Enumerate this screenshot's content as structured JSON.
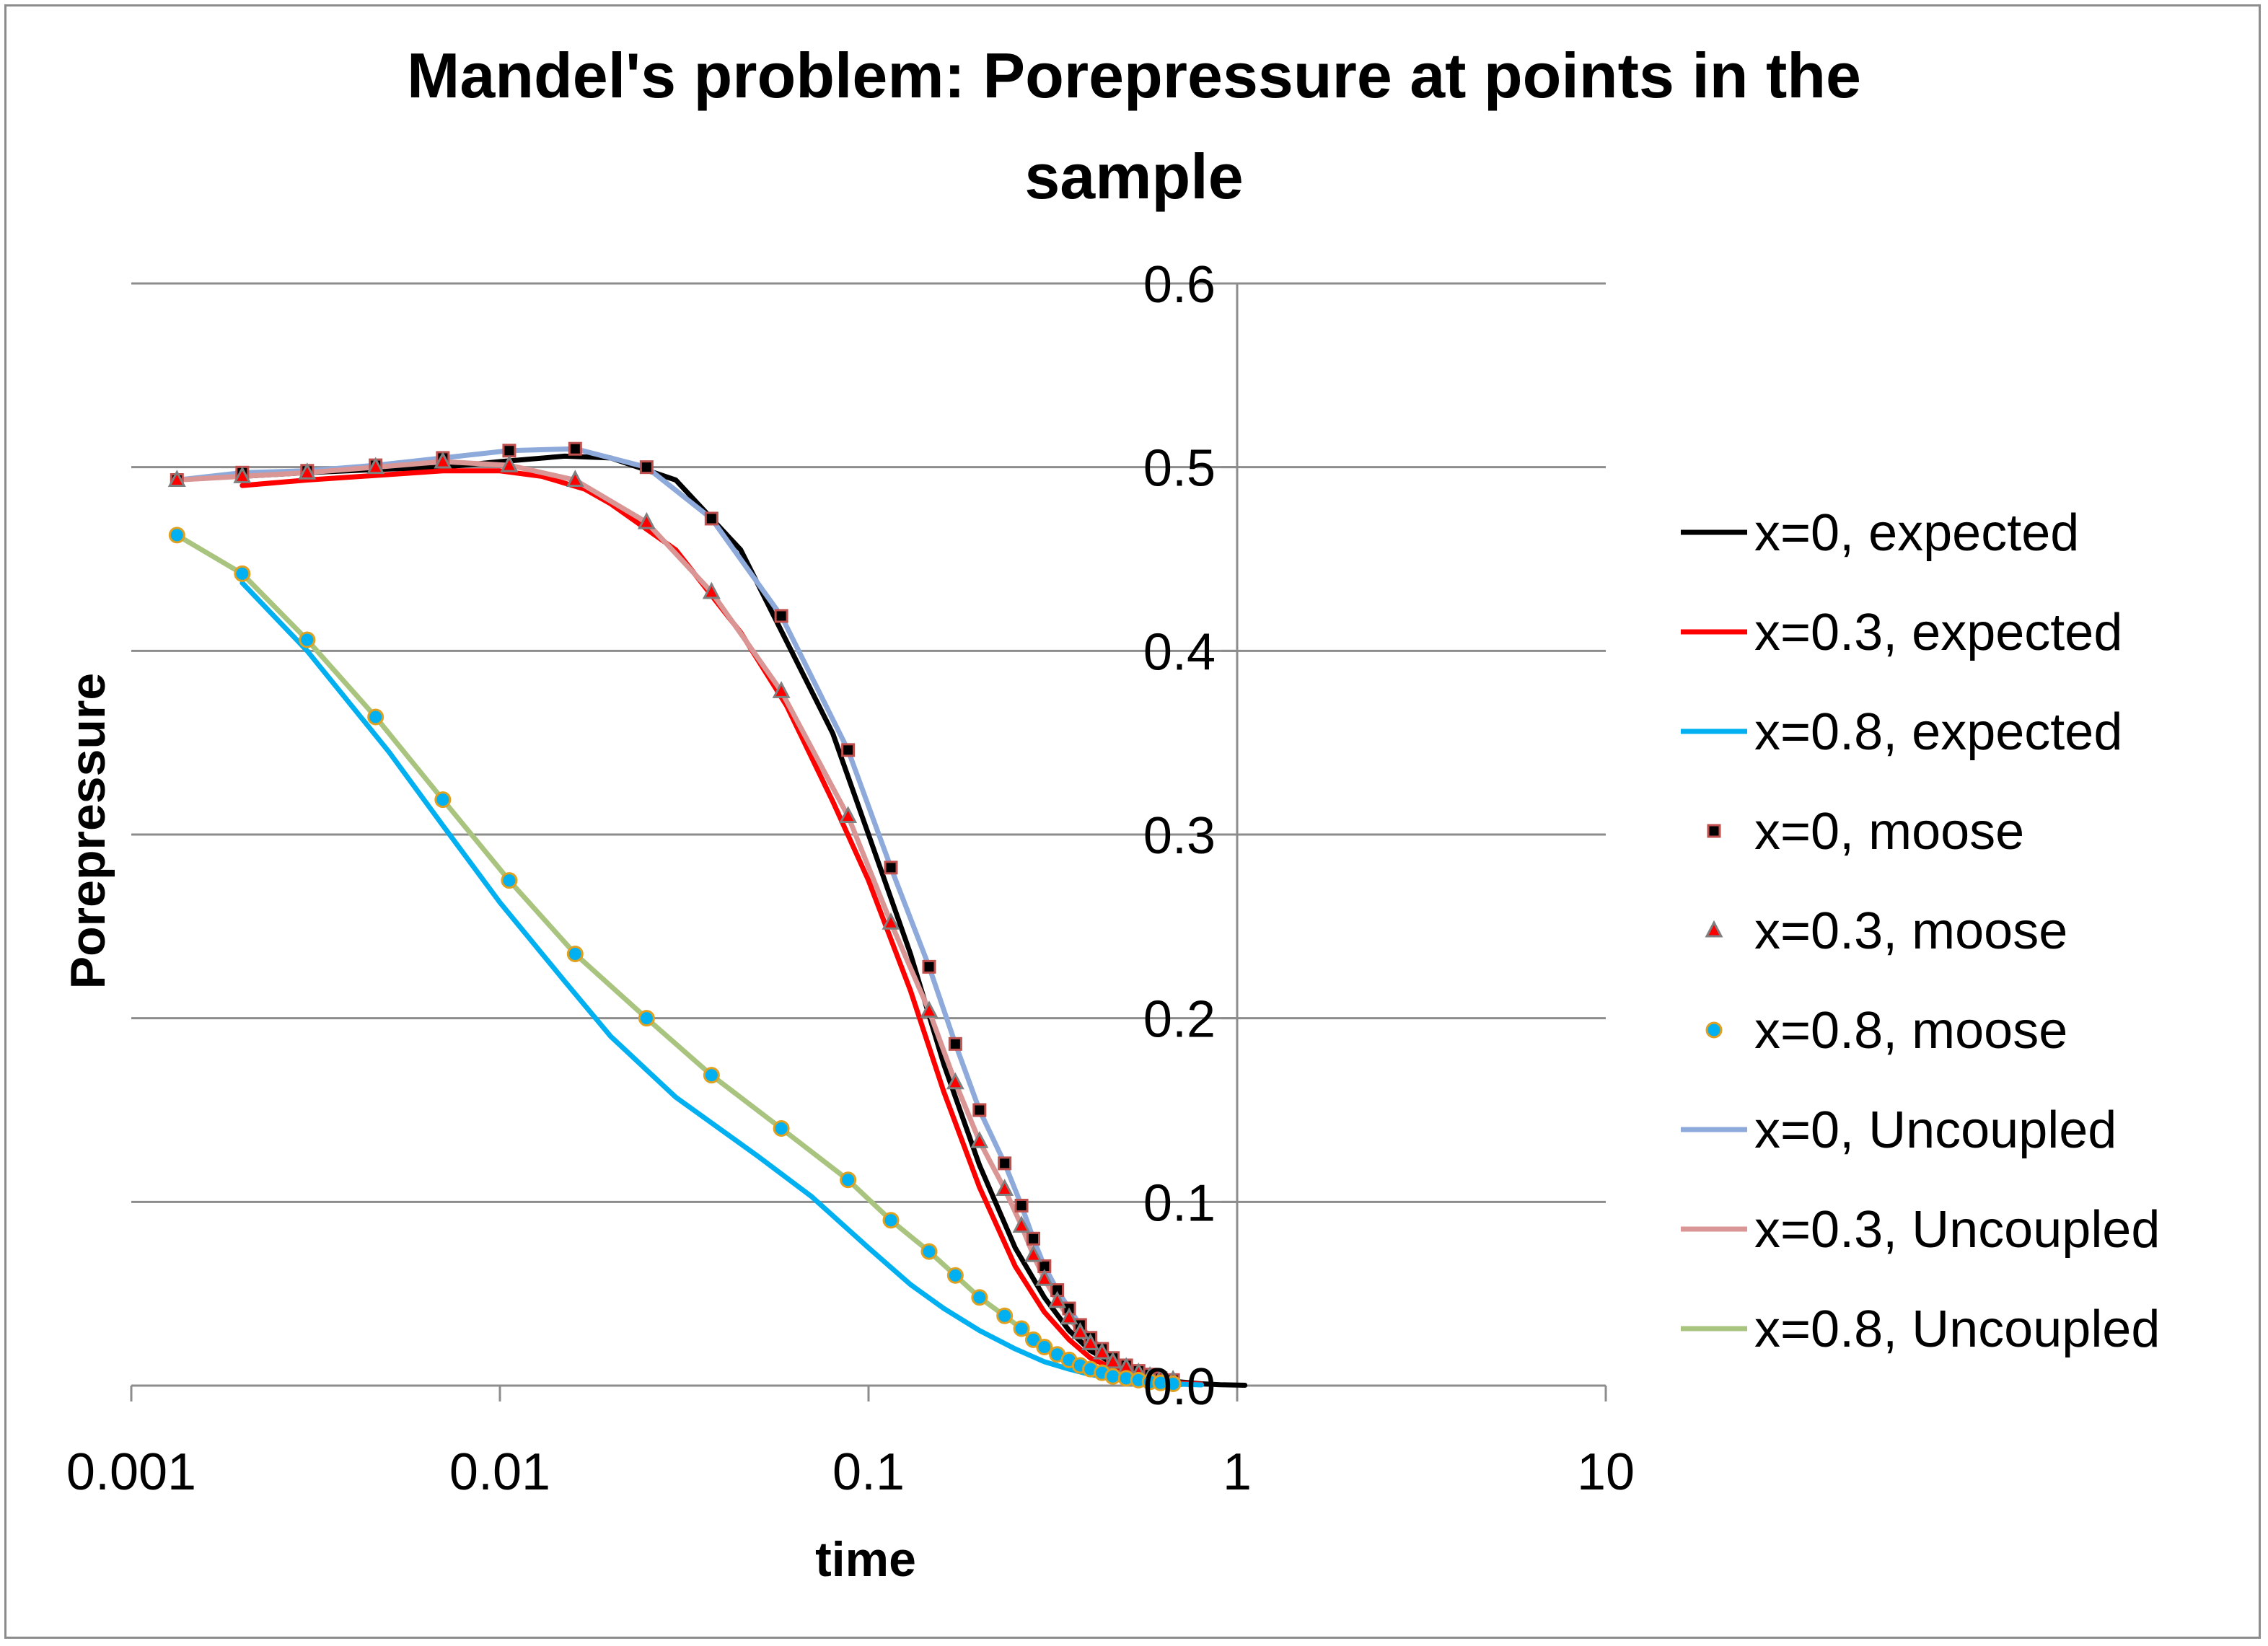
{
  "chart_data": {
    "type": "line",
    "title_line1": "Mandel's problem: Porepressure at points in the",
    "title_line2": "sample",
    "xlabel": "time",
    "ylabel": "Porepressure",
    "x_scale": "log",
    "xlim": [
      0.001,
      10
    ],
    "ylim": [
      0,
      0.6
    ],
    "x_ticks": [
      0.001,
      0.01,
      0.1,
      1,
      10
    ],
    "x_tick_labels": [
      "0.001",
      "0.01",
      "0.1",
      "1",
      "10"
    ],
    "y_ticks": [
      0,
      0.1,
      0.2,
      0.3,
      0.4,
      0.5,
      0.6
    ],
    "y_tick_labels": [
      "0.0",
      "0.1",
      "0.2",
      "0.3",
      "0.4",
      "0.5",
      "0.6"
    ],
    "y_axis_position": "x=1",
    "grid": {
      "horizontal": true,
      "vertical": false
    },
    "legend_position": "right",
    "series": [
      {
        "name": "x=0, expected",
        "kind": "line",
        "color": "#000000",
        "x": [
          0.002,
          0.003,
          0.005,
          0.007,
          0.01,
          0.015,
          0.02,
          0.03,
          0.045,
          0.06,
          0.08,
          0.1,
          0.13,
          0.16,
          0.2,
          0.25,
          0.3,
          0.35,
          0.4,
          0.5,
          0.6,
          0.7,
          0.8,
          0.9,
          1.0,
          1.05
        ],
        "y": [
          0.495,
          0.497,
          0.499,
          0.5,
          0.503,
          0.506,
          0.505,
          0.493,
          0.455,
          0.405,
          0.355,
          0.3,
          0.235,
          0.175,
          0.12,
          0.075,
          0.048,
          0.03,
          0.019,
          0.008,
          0.004,
          0.002,
          0.001,
          0.0005,
          0.0003,
          0.0002
        ]
      },
      {
        "name": "x=0.3, expected",
        "kind": "line",
        "color": "#ff0000",
        "x": [
          0.002,
          0.003,
          0.005,
          0.007,
          0.01,
          0.013,
          0.017,
          0.02,
          0.03,
          0.045,
          0.06,
          0.08,
          0.1,
          0.13,
          0.16,
          0.2,
          0.25,
          0.3,
          0.35,
          0.4,
          0.5,
          0.6,
          0.7,
          0.8
        ],
        "y": [
          0.49,
          0.493,
          0.496,
          0.498,
          0.498,
          0.495,
          0.488,
          0.48,
          0.455,
          0.41,
          0.37,
          0.318,
          0.275,
          0.215,
          0.16,
          0.108,
          0.065,
          0.04,
          0.025,
          0.015,
          0.006,
          0.003,
          0.0015,
          0.0008
        ]
      },
      {
        "name": "x=0.8, expected",
        "kind": "line",
        "color": "#00b0f0",
        "x": [
          0.002,
          0.003,
          0.005,
          0.007,
          0.01,
          0.015,
          0.02,
          0.03,
          0.05,
          0.07,
          0.1,
          0.13,
          0.16,
          0.2,
          0.25,
          0.3,
          0.35,
          0.4,
          0.5,
          0.6,
          0.7,
          0.8
        ],
        "y": [
          0.437,
          0.4,
          0.345,
          0.305,
          0.263,
          0.22,
          0.19,
          0.157,
          0.125,
          0.103,
          0.075,
          0.055,
          0.042,
          0.03,
          0.02,
          0.013,
          0.009,
          0.006,
          0.003,
          0.0015,
          0.0008,
          0.0004
        ]
      },
      {
        "name": "x=0, moose",
        "kind": "marker",
        "marker": "square",
        "color": "#000000",
        "edge": "#c0504d",
        "x": [
          0.00133,
          0.002,
          0.003,
          0.0046,
          0.007,
          0.0106,
          0.016,
          0.025,
          0.0375,
          0.058,
          0.088,
          0.115,
          0.146,
          0.172,
          0.2,
          0.234,
          0.26,
          0.28,
          0.3,
          0.325,
          0.35,
          0.375,
          0.4,
          0.43,
          0.46,
          0.5,
          0.54,
          0.58,
          0.62,
          0.67
        ],
        "y": [
          0.493,
          0.497,
          0.498,
          0.501,
          0.505,
          0.509,
          0.51,
          0.5,
          0.472,
          0.419,
          0.346,
          0.282,
          0.228,
          0.186,
          0.15,
          0.121,
          0.098,
          0.08,
          0.065,
          0.052,
          0.042,
          0.033,
          0.026,
          0.02,
          0.015,
          0.011,
          0.008,
          0.006,
          0.004,
          0.003
        ]
      },
      {
        "name": "x=0.3, moose",
        "kind": "marker",
        "marker": "triangle",
        "color": "#ff0000",
        "edge": "#7f7f7f",
        "x": [
          0.00133,
          0.002,
          0.003,
          0.0046,
          0.007,
          0.0106,
          0.016,
          0.025,
          0.0375,
          0.058,
          0.088,
          0.115,
          0.146,
          0.172,
          0.2,
          0.234,
          0.26,
          0.28,
          0.3,
          0.325,
          0.35,
          0.375,
          0.4,
          0.43,
          0.46,
          0.5,
          0.54,
          0.58,
          0.62,
          0.67
        ],
        "y": [
          0.493,
          0.495,
          0.497,
          0.5,
          0.503,
          0.501,
          0.493,
          0.47,
          0.432,
          0.378,
          0.31,
          0.252,
          0.204,
          0.165,
          0.133,
          0.107,
          0.087,
          0.071,
          0.058,
          0.046,
          0.037,
          0.029,
          0.023,
          0.018,
          0.013,
          0.01,
          0.007,
          0.005,
          0.004,
          0.003
        ]
      },
      {
        "name": "x=0.8, moose",
        "kind": "marker",
        "marker": "circle",
        "color": "#00b0f0",
        "edge": "#e0a020",
        "x": [
          0.00133,
          0.002,
          0.003,
          0.0046,
          0.007,
          0.0106,
          0.016,
          0.025,
          0.0375,
          0.058,
          0.088,
          0.115,
          0.146,
          0.172,
          0.2,
          0.234,
          0.26,
          0.28,
          0.3,
          0.325,
          0.35,
          0.375,
          0.4,
          0.43,
          0.46,
          0.5,
          0.54,
          0.58,
          0.62,
          0.67
        ],
        "y": [
          0.463,
          0.442,
          0.406,
          0.364,
          0.319,
          0.275,
          0.235,
          0.2,
          0.169,
          0.14,
          0.112,
          0.09,
          0.073,
          0.06,
          0.048,
          0.038,
          0.031,
          0.025,
          0.021,
          0.017,
          0.014,
          0.011,
          0.009,
          0.007,
          0.005,
          0.004,
          0.003,
          0.002,
          0.0015,
          0.001
        ]
      },
      {
        "name": "x=0, Uncoupled",
        "kind": "line",
        "color": "#8eaadb",
        "x": [
          0.00133,
          0.002,
          0.003,
          0.0046,
          0.007,
          0.0106,
          0.016,
          0.025,
          0.0375,
          0.058,
          0.088,
          0.115,
          0.146,
          0.172,
          0.2,
          0.234,
          0.26,
          0.28,
          0.3,
          0.325,
          0.35,
          0.375,
          0.4,
          0.43,
          0.46,
          0.5,
          0.54,
          0.58,
          0.62,
          0.67
        ],
        "y": [
          0.493,
          0.497,
          0.498,
          0.501,
          0.505,
          0.509,
          0.51,
          0.5,
          0.472,
          0.419,
          0.346,
          0.282,
          0.228,
          0.186,
          0.15,
          0.121,
          0.098,
          0.08,
          0.065,
          0.052,
          0.042,
          0.033,
          0.026,
          0.02,
          0.015,
          0.011,
          0.008,
          0.006,
          0.004,
          0.003
        ]
      },
      {
        "name": "x=0.3, Uncoupled",
        "kind": "line",
        "color": "#d99694",
        "x": [
          0.00133,
          0.002,
          0.003,
          0.0046,
          0.007,
          0.0106,
          0.016,
          0.025,
          0.0375,
          0.058,
          0.088,
          0.115,
          0.146,
          0.172,
          0.2,
          0.234,
          0.26,
          0.28,
          0.3,
          0.325,
          0.35,
          0.375,
          0.4,
          0.43,
          0.46,
          0.5,
          0.54,
          0.58,
          0.62,
          0.67
        ],
        "y": [
          0.493,
          0.495,
          0.497,
          0.5,
          0.503,
          0.501,
          0.493,
          0.47,
          0.432,
          0.378,
          0.31,
          0.252,
          0.204,
          0.165,
          0.133,
          0.107,
          0.087,
          0.071,
          0.058,
          0.046,
          0.037,
          0.029,
          0.023,
          0.018,
          0.013,
          0.01,
          0.007,
          0.005,
          0.004,
          0.003
        ]
      },
      {
        "name": "x=0.8, Uncoupled",
        "kind": "line",
        "color": "#a9c47f",
        "x": [
          0.00133,
          0.002,
          0.003,
          0.0046,
          0.007,
          0.0106,
          0.016,
          0.025,
          0.0375,
          0.058,
          0.088,
          0.115,
          0.146,
          0.172,
          0.2,
          0.234,
          0.26,
          0.28,
          0.3,
          0.325,
          0.35,
          0.375,
          0.4,
          0.43,
          0.46,
          0.5,
          0.54,
          0.58,
          0.62,
          0.67
        ],
        "y": [
          0.463,
          0.442,
          0.406,
          0.364,
          0.319,
          0.275,
          0.235,
          0.2,
          0.169,
          0.14,
          0.112,
          0.09,
          0.073,
          0.06,
          0.048,
          0.038,
          0.031,
          0.025,
          0.021,
          0.017,
          0.014,
          0.011,
          0.009,
          0.007,
          0.005,
          0.004,
          0.003,
          0.002,
          0.0015,
          0.001
        ]
      }
    ]
  }
}
